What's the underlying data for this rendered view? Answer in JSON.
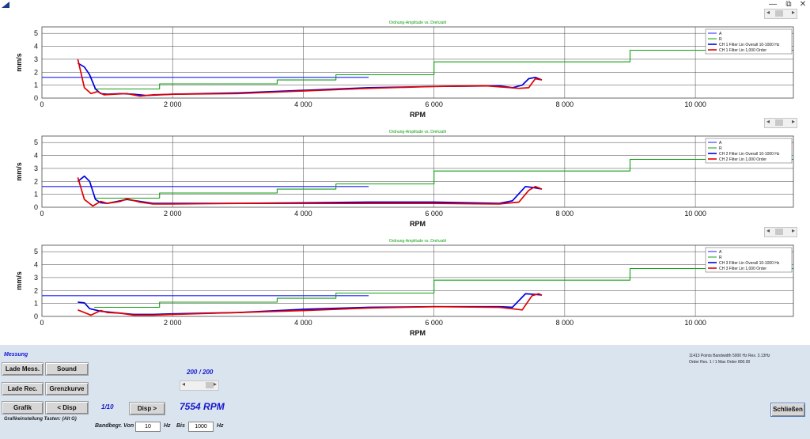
{
  "window": {
    "minimize_label": "—",
    "restore_label": "⧉",
    "close_label": "✕"
  },
  "scrollbar": {
    "left_arrow": "◂",
    "right_arrow": "▸"
  },
  "charts": [
    {
      "title": "Ordnung-Amplitude vs. Drehzahl",
      "ylabel": "mm/s",
      "xlabel": "RPM",
      "legend": [
        "A",
        "R",
        "CH 1 Filter Lin Overall 10-1000 Hz",
        "CH 1 Filter Lin 1,000 Order"
      ]
    },
    {
      "title": "Ordnung-Amplitude vs. Drehzahl",
      "ylabel": "mm/s",
      "xlabel": "RPM",
      "legend": [
        "A",
        "R",
        "CH 2 Filter Lin Overall 10-1000 Hz",
        "CH 2 Filter Lin 1,000 Order"
      ]
    },
    {
      "title": "Ordnung-Amplitude vs. Drehzahl",
      "ylabel": "mm/s",
      "xlabel": "RPM",
      "legend": [
        "A",
        "R",
        "CH 3 Filter Lin Overall 10-1000 Hz",
        "CH 3 Filter Lin 1,000 Order"
      ]
    }
  ],
  "chart_data": [
    {
      "type": "line",
      "title": "Ordnung-Amplitude vs. Drehzahl",
      "xlabel": "RPM",
      "ylabel": "mm/s",
      "xlim": [
        0,
        11500
      ],
      "ylim": [
        0,
        5.5
      ],
      "xticks": [
        "0",
        "2 000",
        "4 000",
        "6 000",
        "8 000",
        "10 000"
      ],
      "yticks": [
        "0",
        "1",
        "2",
        "3",
        "4",
        "5"
      ],
      "legend_position": "top-right",
      "grid": true,
      "series": [
        {
          "name": "A",
          "color": "#1c1cff",
          "points": [
            [
              0,
              1.6
            ],
            [
              5000,
              1.6
            ]
          ]
        },
        {
          "name": "R",
          "color": "#10a010",
          "points": [
            [
              800,
              0.7
            ],
            [
              1800,
              0.7
            ],
            [
              1800,
              1.1
            ],
            [
              3600,
              1.1
            ],
            [
              3600,
              1.4
            ],
            [
              4500,
              1.4
            ],
            [
              4500,
              1.8
            ],
            [
              6000,
              1.8
            ],
            [
              6000,
              2.8
            ],
            [
              9000,
              2.8
            ],
            [
              9000,
              3.7
            ],
            [
              11500,
              3.7
            ]
          ]
        },
        {
          "name": "CH 1 Filter Lin Overall 10-1000 Hz",
          "color": "#0000e0",
          "points": [
            [
              550,
              2.7
            ],
            [
              650,
              2.4
            ],
            [
              730,
              1.8
            ],
            [
              820,
              0.7
            ],
            [
              900,
              0.35
            ],
            [
              1000,
              0.3
            ],
            [
              1200,
              0.35
            ],
            [
              1400,
              0.3
            ],
            [
              1600,
              0.2
            ],
            [
              2000,
              0.3
            ],
            [
              3000,
              0.4
            ],
            [
              4000,
              0.6
            ],
            [
              5000,
              0.8
            ],
            [
              6000,
              0.9
            ],
            [
              7000,
              0.95
            ],
            [
              7200,
              0.8
            ],
            [
              7350,
              1.0
            ],
            [
              7450,
              1.5
            ],
            [
              7550,
              1.6
            ],
            [
              7650,
              1.4
            ]
          ]
        },
        {
          "name": "CH 1 Filter Lin 1,000 Order",
          "color": "#e00000",
          "points": [
            [
              550,
              3.0
            ],
            [
              650,
              0.8
            ],
            [
              750,
              0.35
            ],
            [
              850,
              0.5
            ],
            [
              950,
              0.25
            ],
            [
              1100,
              0.3
            ],
            [
              1300,
              0.35
            ],
            [
              1500,
              0.15
            ],
            [
              1700,
              0.25
            ],
            [
              2000,
              0.3
            ],
            [
              3000,
              0.35
            ],
            [
              4000,
              0.55
            ],
            [
              5000,
              0.75
            ],
            [
              6000,
              0.9
            ],
            [
              6800,
              0.95
            ],
            [
              7300,
              0.75
            ],
            [
              7450,
              0.8
            ],
            [
              7550,
              1.5
            ],
            [
              7650,
              1.4
            ]
          ]
        }
      ]
    },
    {
      "type": "line",
      "title": "Ordnung-Amplitude vs. Drehzahl",
      "xlabel": "RPM",
      "ylabel": "mm/s",
      "xlim": [
        0,
        11500
      ],
      "ylim": [
        0,
        5.5
      ],
      "xticks": [
        "0",
        "2 000",
        "4 000",
        "6 000",
        "8 000",
        "10 000"
      ],
      "yticks": [
        "0",
        "1",
        "2",
        "3",
        "4",
        "5"
      ],
      "legend_position": "top-right",
      "grid": true,
      "series": [
        {
          "name": "A",
          "color": "#1c1cff",
          "points": [
            [
              0,
              1.6
            ],
            [
              5000,
              1.6
            ]
          ]
        },
        {
          "name": "R",
          "color": "#10a010",
          "points": [
            [
              800,
              0.7
            ],
            [
              1800,
              0.7
            ],
            [
              1800,
              1.1
            ],
            [
              3600,
              1.1
            ],
            [
              3600,
              1.4
            ],
            [
              4500,
              1.4
            ],
            [
              4500,
              1.8
            ],
            [
              6000,
              1.8
            ],
            [
              6000,
              2.8
            ],
            [
              9000,
              2.8
            ],
            [
              9000,
              3.7
            ],
            [
              11500,
              3.7
            ]
          ]
        },
        {
          "name": "CH 2 Filter Lin Overall 10-1000 Hz",
          "color": "#0000e0",
          "points": [
            [
              550,
              2.0
            ],
            [
              650,
              2.4
            ],
            [
              730,
              2.0
            ],
            [
              820,
              0.6
            ],
            [
              900,
              0.35
            ],
            [
              1000,
              0.3
            ],
            [
              1200,
              0.5
            ],
            [
              1300,
              0.6
            ],
            [
              1500,
              0.45
            ],
            [
              1700,
              0.3
            ],
            [
              2000,
              0.3
            ],
            [
              3000,
              0.3
            ],
            [
              4000,
              0.35
            ],
            [
              5000,
              0.4
            ],
            [
              6000,
              0.4
            ],
            [
              7000,
              0.3
            ],
            [
              7200,
              0.5
            ],
            [
              7400,
              1.6
            ],
            [
              7550,
              1.5
            ],
            [
              7650,
              1.4
            ]
          ]
        },
        {
          "name": "CH 2 Filter Lin 1,000 Order",
          "color": "#e00000",
          "points": [
            [
              550,
              2.3
            ],
            [
              650,
              0.6
            ],
            [
              780,
              0.1
            ],
            [
              900,
              0.45
            ],
            [
              1000,
              0.3
            ],
            [
              1200,
              0.45
            ],
            [
              1300,
              0.65
            ],
            [
              1500,
              0.4
            ],
            [
              1700,
              0.25
            ],
            [
              2000,
              0.25
            ],
            [
              3000,
              0.3
            ],
            [
              4000,
              0.3
            ],
            [
              5000,
              0.3
            ],
            [
              6000,
              0.3
            ],
            [
              7000,
              0.25
            ],
            [
              7300,
              0.4
            ],
            [
              7450,
              1.3
            ],
            [
              7550,
              1.6
            ],
            [
              7650,
              1.4
            ]
          ]
        }
      ]
    },
    {
      "type": "line",
      "title": "Ordnung-Amplitude vs. Drehzahl",
      "xlabel": "RPM",
      "ylabel": "mm/s",
      "xlim": [
        0,
        11500
      ],
      "ylim": [
        0,
        5.5
      ],
      "xticks": [
        "0",
        "2 000",
        "4 000",
        "6 000",
        "8 000",
        "10 000"
      ],
      "yticks": [
        "0",
        "1",
        "2",
        "3",
        "4",
        "5"
      ],
      "legend_position": "top-right",
      "grid": true,
      "series": [
        {
          "name": "A",
          "color": "#1c1cff",
          "points": [
            [
              0,
              1.6
            ],
            [
              5000,
              1.6
            ]
          ]
        },
        {
          "name": "R",
          "color": "#10a010",
          "points": [
            [
              800,
              0.7
            ],
            [
              1800,
              0.7
            ],
            [
              1800,
              1.1
            ],
            [
              3600,
              1.1
            ],
            [
              3600,
              1.4
            ],
            [
              4500,
              1.4
            ],
            [
              4500,
              1.8
            ],
            [
              6000,
              1.8
            ],
            [
              6000,
              2.8
            ],
            [
              9000,
              2.8
            ],
            [
              9000,
              3.7
            ],
            [
              11500,
              3.7
            ]
          ]
        },
        {
          "name": "CH 3 Filter Lin Overall 10-1000 Hz",
          "color": "#0000e0",
          "points": [
            [
              550,
              1.1
            ],
            [
              650,
              1.05
            ],
            [
              730,
              0.6
            ],
            [
              900,
              0.4
            ],
            [
              1100,
              0.3
            ],
            [
              1400,
              0.15
            ],
            [
              1700,
              0.15
            ],
            [
              2000,
              0.2
            ],
            [
              3000,
              0.3
            ],
            [
              4000,
              0.55
            ],
            [
              5000,
              0.7
            ],
            [
              6000,
              0.75
            ],
            [
              7000,
              0.75
            ],
            [
              7200,
              0.7
            ],
            [
              7400,
              1.75
            ],
            [
              7550,
              1.7
            ],
            [
              7650,
              1.65
            ]
          ]
        },
        {
          "name": "CH 3 Filter Lin 1,000 Order",
          "color": "#e00000",
          "points": [
            [
              550,
              0.5
            ],
            [
              750,
              0.1
            ],
            [
              900,
              0.45
            ],
            [
              1000,
              0.3
            ],
            [
              1200,
              0.25
            ],
            [
              1400,
              0.1
            ],
            [
              1700,
              0.1
            ],
            [
              2000,
              0.15
            ],
            [
              3000,
              0.3
            ],
            [
              4000,
              0.45
            ],
            [
              5000,
              0.65
            ],
            [
              6000,
              0.75
            ],
            [
              7000,
              0.7
            ],
            [
              7350,
              0.5
            ],
            [
              7500,
              1.6
            ],
            [
              7600,
              1.75
            ],
            [
              7650,
              1.65
            ]
          ]
        }
      ]
    }
  ],
  "panel": {
    "section_title": "Messung",
    "buttons": {
      "lade_mess": "Lade Mess.",
      "sound": "Sound",
      "lade_rec": "Lade Rec.",
      "grenzkurve": "Grenzkurve",
      "grafik": "Grafik",
      "prev_disp": "< Disp",
      "next_disp": "Disp >",
      "close": "Schließen"
    },
    "position_counter": "200 / 200",
    "disp_counter": "1/10",
    "rpm_readout": "7554 RPM",
    "shortcut_hint": "Grafikeinstellung Tasten: (Alt G)",
    "band": {
      "label": "Bandbegr. Von",
      "from": "10",
      "from_unit": "Hz",
      "to_label": "Bis",
      "to": "1000",
      "to_unit": "Hz"
    },
    "info_line1": "11413 Points  Bandwidth 5000 Hz  Res. 3.13Hz",
    "info_line2": "Order Res.   1 / 1 Max Order 800.00"
  }
}
